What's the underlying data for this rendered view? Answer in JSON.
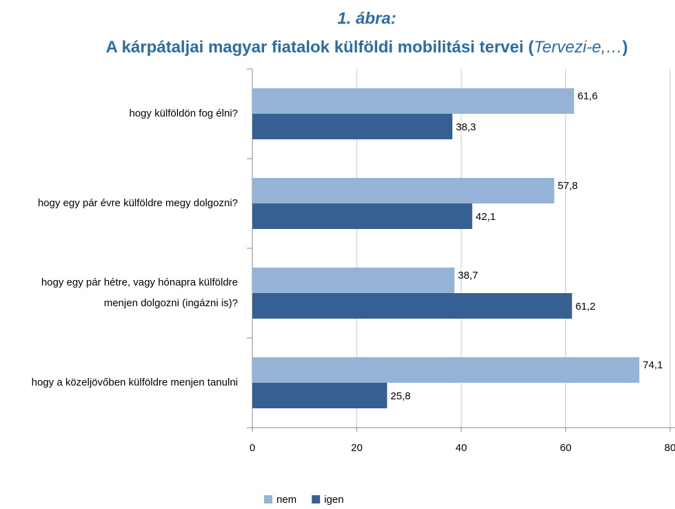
{
  "chart_data": {
    "type": "bar",
    "orientation": "horizontal",
    "title": "1. ábra:",
    "subtitle": [
      "A kárpátaljai magyar fiatalok külföldi mobilitási tervei (",
      "Tervezi-e,…",
      ")"
    ],
    "categories": [
      "hogy külföldön fog élni?",
      "hogy egy pár évre külföldre megy dolgozni?",
      "hogy egy pár hétre, vagy hónapra külföldre menjen dolgozni (ingázni is)?",
      "hogy a közeljövőben külföldre menjen tanulni"
    ],
    "series": [
      {
        "name": "nem",
        "color": "#95b3d7",
        "values": [
          61.6,
          57.8,
          38.7,
          74.1
        ],
        "value_labels": [
          "61,6",
          "57,8",
          "38,7",
          "74,1"
        ]
      },
      {
        "name": "igen",
        "color": "#366092",
        "values": [
          38.3,
          42.1,
          61.2,
          25.8
        ],
        "value_labels": [
          "38,3",
          "42,1",
          "61,2",
          "25,8"
        ]
      }
    ],
    "xlim": [
      0,
      80
    ],
    "xticks": [
      0,
      20,
      40,
      60,
      80
    ],
    "grid": true,
    "legend": "bottom"
  }
}
